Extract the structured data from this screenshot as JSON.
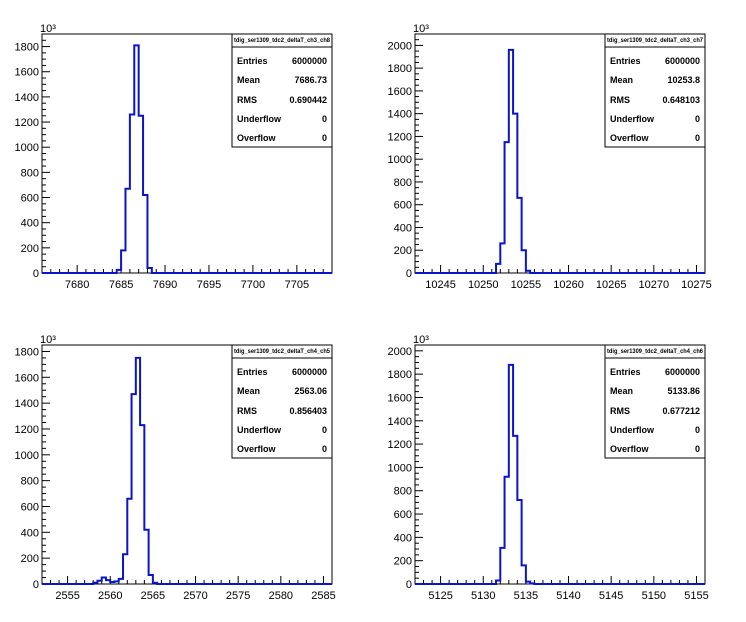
{
  "chart_data": [
    {
      "type": "bar",
      "histogram_name": "tdig_ser1309_tdc2_deltaT_ch3_ch8",
      "stats": {
        "entries_label": "Entries",
        "entries": "6000000",
        "mean_label": "Mean",
        "mean": "7686.73",
        "rms_label": "RMS",
        "rms": "0.690442",
        "underflow_label": "Underflow",
        "underflow": "0",
        "overflow_label": "Overflow",
        "overflow": "0"
      },
      "y_exponent": "10³",
      "xlim": [
        7676,
        7709
      ],
      "ylim": [
        0,
        1900
      ],
      "x_ticks": [
        7680,
        7685,
        7690,
        7695,
        7700,
        7705
      ],
      "y_ticks": [
        0,
        200,
        400,
        600,
        800,
        1000,
        1200,
        1400,
        1600,
        1800
      ],
      "bin_width": 0.5,
      "bins_x": [
        7684.5,
        7685,
        7685.5,
        7686,
        7686.5,
        7687,
        7687.5,
        7688
      ],
      "bins_y": [
        25,
        180,
        670,
        1260,
        1810,
        1250,
        620,
        40
      ]
    },
    {
      "type": "bar",
      "histogram_name": "tdig_ser1309_tdc2_deltaT_ch3_ch7",
      "stats": {
        "entries_label": "Entries",
        "entries": "6000000",
        "mean_label": "Mean",
        "mean": "10253.8",
        "rms_label": "RMS",
        "rms": "0.648103",
        "underflow_label": "Underflow",
        "underflow": "0",
        "overflow_label": "Overflow",
        "overflow": "0"
      },
      "y_exponent": "10³",
      "xlim": [
        10242,
        10276
      ],
      "ylim": [
        0,
        2100
      ],
      "x_ticks": [
        10245,
        10250,
        10255,
        10260,
        10265,
        10270,
        10275
      ],
      "y_ticks": [
        0,
        200,
        400,
        600,
        800,
        1000,
        1200,
        1400,
        1600,
        1800,
        2000
      ],
      "bin_width": 0.5,
      "bins_x": [
        10251.5,
        10252,
        10252.5,
        10253,
        10253.5,
        10254,
        10254.5,
        10255
      ],
      "bins_y": [
        80,
        260,
        1150,
        1960,
        1400,
        660,
        200,
        20
      ]
    },
    {
      "type": "bar",
      "histogram_name": "tdig_ser1309_tdc2_deltaT_ch4_ch5",
      "stats": {
        "entries_label": "Entries",
        "entries": "6000000",
        "mean_label": "Mean",
        "mean": "2563.06",
        "rms_label": "RMS",
        "rms": "0.856403",
        "underflow_label": "Underflow",
        "underflow": "0",
        "overflow_label": "Overflow",
        "overflow": "0"
      },
      "y_exponent": "10³",
      "xlim": [
        2552,
        2586
      ],
      "ylim": [
        0,
        1850
      ],
      "x_ticks": [
        2555,
        2560,
        2565,
        2570,
        2575,
        2580,
        2585
      ],
      "y_ticks": [
        0,
        200,
        400,
        600,
        800,
        1000,
        1200,
        1400,
        1600,
        1800
      ],
      "bin_width": 0.5,
      "bins_x": [
        2558,
        2558.5,
        2559,
        2559.5,
        2560,
        2560.5,
        2561,
        2561.5,
        2562,
        2562.5,
        2563,
        2563.5,
        2564,
        2564.5,
        2565
      ],
      "bins_y": [
        10,
        25,
        50,
        30,
        15,
        20,
        40,
        230,
        660,
        1470,
        1750,
        1230,
        420,
        70,
        10
      ]
    },
    {
      "type": "bar",
      "histogram_name": "tdig_ser1309_tdc2_deltaT_ch4_ch6",
      "stats": {
        "entries_label": "Entries",
        "entries": "6000000",
        "mean_label": "Mean",
        "mean": "5133.86",
        "rms_label": "RMS",
        "rms": "0.677212",
        "underflow_label": "Underflow",
        "underflow": "0",
        "overflow_label": "Overflow",
        "overflow": "0"
      },
      "y_exponent": "10³",
      "xlim": [
        5122,
        5156
      ],
      "ylim": [
        0,
        2050
      ],
      "x_ticks": [
        5125,
        5130,
        5135,
        5140,
        5145,
        5150,
        5155
      ],
      "y_ticks": [
        0,
        200,
        400,
        600,
        800,
        1000,
        1200,
        1400,
        1600,
        1800,
        2000
      ],
      "bin_width": 0.5,
      "bins_x": [
        5131.5,
        5132,
        5132.5,
        5133,
        5133.5,
        5134,
        5134.5,
        5135,
        5135.5
      ],
      "bins_y": [
        30,
        310,
        920,
        1880,
        1270,
        720,
        160,
        20,
        5
      ]
    }
  ]
}
